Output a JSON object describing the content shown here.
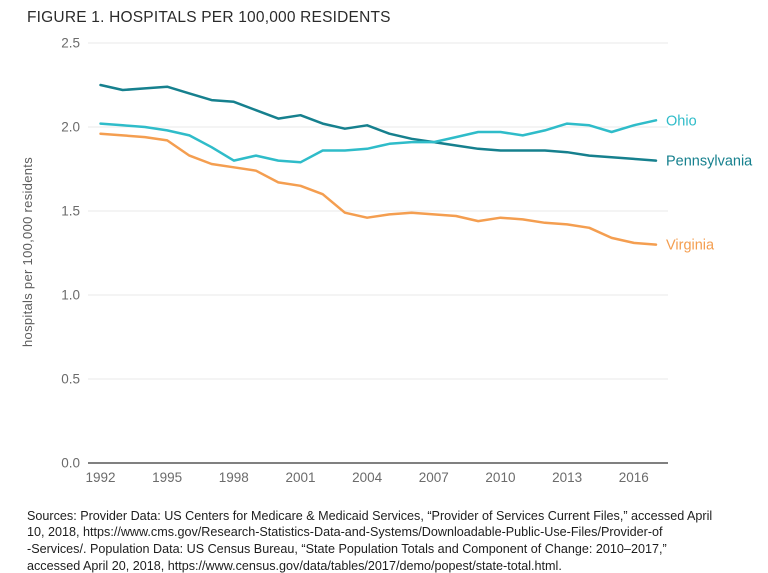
{
  "title": "FIGURE 1. HOSPITALS PER 100,000 RESIDENTS",
  "chart_data": {
    "type": "line",
    "title": "FIGURE 1. HOSPITALS PER 100,000 RESIDENTS",
    "xlabel": "",
    "ylabel": "hospitals per 100,000 residents",
    "ylim": [
      0.0,
      2.5
    ],
    "yticks": [
      0,
      0.5,
      1.0,
      1.5,
      2.0,
      2.5
    ],
    "ytick_labels": [
      "0.0",
      "0.5",
      "1.0",
      "1.5",
      "2.0",
      "2.5"
    ],
    "xticks": [
      1992,
      1995,
      1998,
      2001,
      2004,
      2007,
      2010,
      2013,
      2016
    ],
    "x": [
      1992,
      1993,
      1994,
      1995,
      1996,
      1997,
      1998,
      1999,
      2000,
      2001,
      2002,
      2003,
      2004,
      2005,
      2006,
      2007,
      2008,
      2009,
      2010,
      2011,
      2012,
      2013,
      2014,
      2015,
      2016,
      2017
    ],
    "grid": true,
    "legend_position": "line-end-labels-right",
    "series": [
      {
        "name": "Ohio",
        "color": "#2FBCC9",
        "values": [
          2.02,
          2.01,
          2.0,
          1.98,
          1.95,
          1.88,
          1.8,
          1.83,
          1.8,
          1.79,
          1.86,
          1.86,
          1.87,
          1.9,
          1.91,
          1.91,
          1.94,
          1.97,
          1.97,
          1.95,
          1.98,
          2.02,
          2.01,
          1.97,
          2.01,
          2.04
        ]
      },
      {
        "name": "Pennsylvania",
        "color": "#16808E",
        "values": [
          2.25,
          2.22,
          2.23,
          2.24,
          2.2,
          2.16,
          2.15,
          2.1,
          2.05,
          2.07,
          2.02,
          1.99,
          2.01,
          1.96,
          1.93,
          1.91,
          1.89,
          1.87,
          1.86,
          1.86,
          1.86,
          1.85,
          1.83,
          1.82,
          1.81,
          1.8
        ]
      },
      {
        "name": "Virginia",
        "color": "#F49E50",
        "values": [
          1.96,
          1.95,
          1.94,
          1.92,
          1.83,
          1.78,
          1.76,
          1.74,
          1.67,
          1.65,
          1.6,
          1.49,
          1.46,
          1.48,
          1.49,
          1.48,
          1.47,
          1.44,
          1.46,
          1.45,
          1.43,
          1.42,
          1.4,
          1.34,
          1.31,
          1.3
        ]
      }
    ],
    "axis_color": "#808080",
    "grid_color": "#e8e8e8"
  },
  "source_note": {
    "lines": [
      "Sources: Provider Data: US Centers for Medicare & Medicaid Services, “Provider of Services Current Files,” accessed April",
      "10, 2018, https://www.cms.gov/Research-Statistics-Data-and-Systems/Downloadable-Public-Use-Files/Provider-of",
      "-Services/. Population Data: US Census Bureau, “State Population Totals and Component of Change: 2010–2017,”",
      "accessed April 20, 2018, https://www.census.gov/data/tables/2017/demo/popest/state-total.html."
    ]
  }
}
